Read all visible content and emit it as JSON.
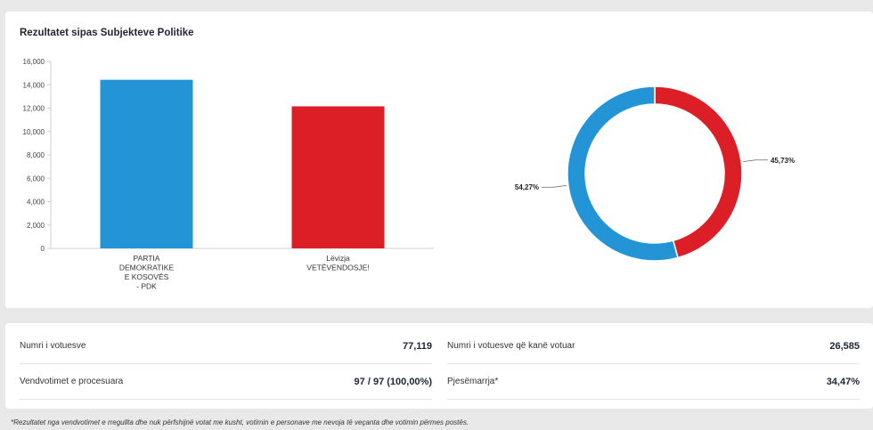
{
  "chart_title": "Rezultatet sipas Subjekteve Politike",
  "chart_data": [
    {
      "type": "bar",
      "categories": [
        [
          "PARTIA",
          "DEMOKRATIKE",
          "E KOSOVËS",
          "- PDK"
        ],
        [
          "Lëvizja",
          "VETËVENDOSJE!"
        ]
      ],
      "values": [
        14428,
        12157
      ],
      "colors": [
        "#2394d6",
        "#dc1f26"
      ],
      "ylim": [
        0,
        16000
      ],
      "yticks": [
        "0",
        "2,000",
        "4,000",
        "6,000",
        "8,000",
        "10,000",
        "12,000",
        "14,000",
        "16,000"
      ],
      "ytick_values": [
        0,
        2000,
        4000,
        6000,
        8000,
        10000,
        12000,
        14000,
        16000
      ],
      "grid": false
    },
    {
      "type": "pie",
      "variant": "donut",
      "slices": [
        {
          "value": 45.73,
          "label": "45,73%",
          "color": "#dc1f26"
        },
        {
          "value": 54.27,
          "label": "54,27%",
          "color": "#2394d6"
        }
      ]
    }
  ],
  "stats": {
    "voters_label": "Numri i votuesve",
    "voters_value": "77,119",
    "voted_label": "Numri i votuesve që kanë votuar",
    "voted_value": "26,585",
    "stations_label": "Vendvotimet e procesuara",
    "stations_value": "97 / 97 (100,00%)",
    "turnout_label": "Pjesëmarrja*",
    "turnout_value": "34,47%"
  },
  "footnote": "*Rezultatet nga vendvotimet e rregullta dhe nuk përfshijnë votat me kusht, votimin e personave me nevoja të veçanta dhe votimin përmes postës."
}
